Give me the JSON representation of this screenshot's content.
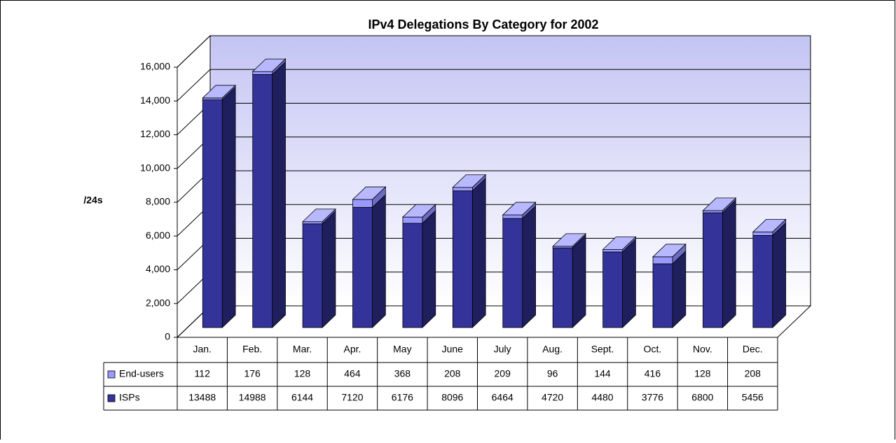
{
  "chart_data": {
    "type": "bar3d_stacked",
    "title": "IPv4 Delegations By Category for 2002",
    "ylabel": "/24s",
    "categories": [
      "Jan.",
      "Feb.",
      "Mar.",
      "Apr.",
      "May",
      "June",
      "July",
      "Aug.",
      "Sept.",
      "Oct.",
      "Nov.",
      "Dec."
    ],
    "series": [
      {
        "name": "End-users",
        "color": "#9999ff",
        "values": [
          112,
          176,
          128,
          464,
          368,
          208,
          209,
          96,
          144,
          416,
          128,
          208
        ]
      },
      {
        "name": "ISPs",
        "color": "#333399",
        "values": [
          13488,
          14988,
          6144,
          7120,
          6176,
          8096,
          6464,
          4720,
          4480,
          3776,
          6800,
          5456
        ]
      }
    ],
    "ylim": [
      0,
      16000
    ],
    "yticks": [
      0,
      {
        "value": 2000,
        "label": "2,000"
      },
      {
        "value": 4000,
        "label": "4,000"
      },
      {
        "value": 6000,
        "label": "6,000"
      },
      {
        "value": 8000,
        "label": "8,000"
      },
      {
        "value": 10000,
        "label": "10,000"
      },
      {
        "value": 12000,
        "label": "12,000"
      },
      {
        "value": 14000,
        "label": "14,000"
      },
      {
        "value": 16000,
        "label": "16,000"
      }
    ],
    "grid": true
  }
}
